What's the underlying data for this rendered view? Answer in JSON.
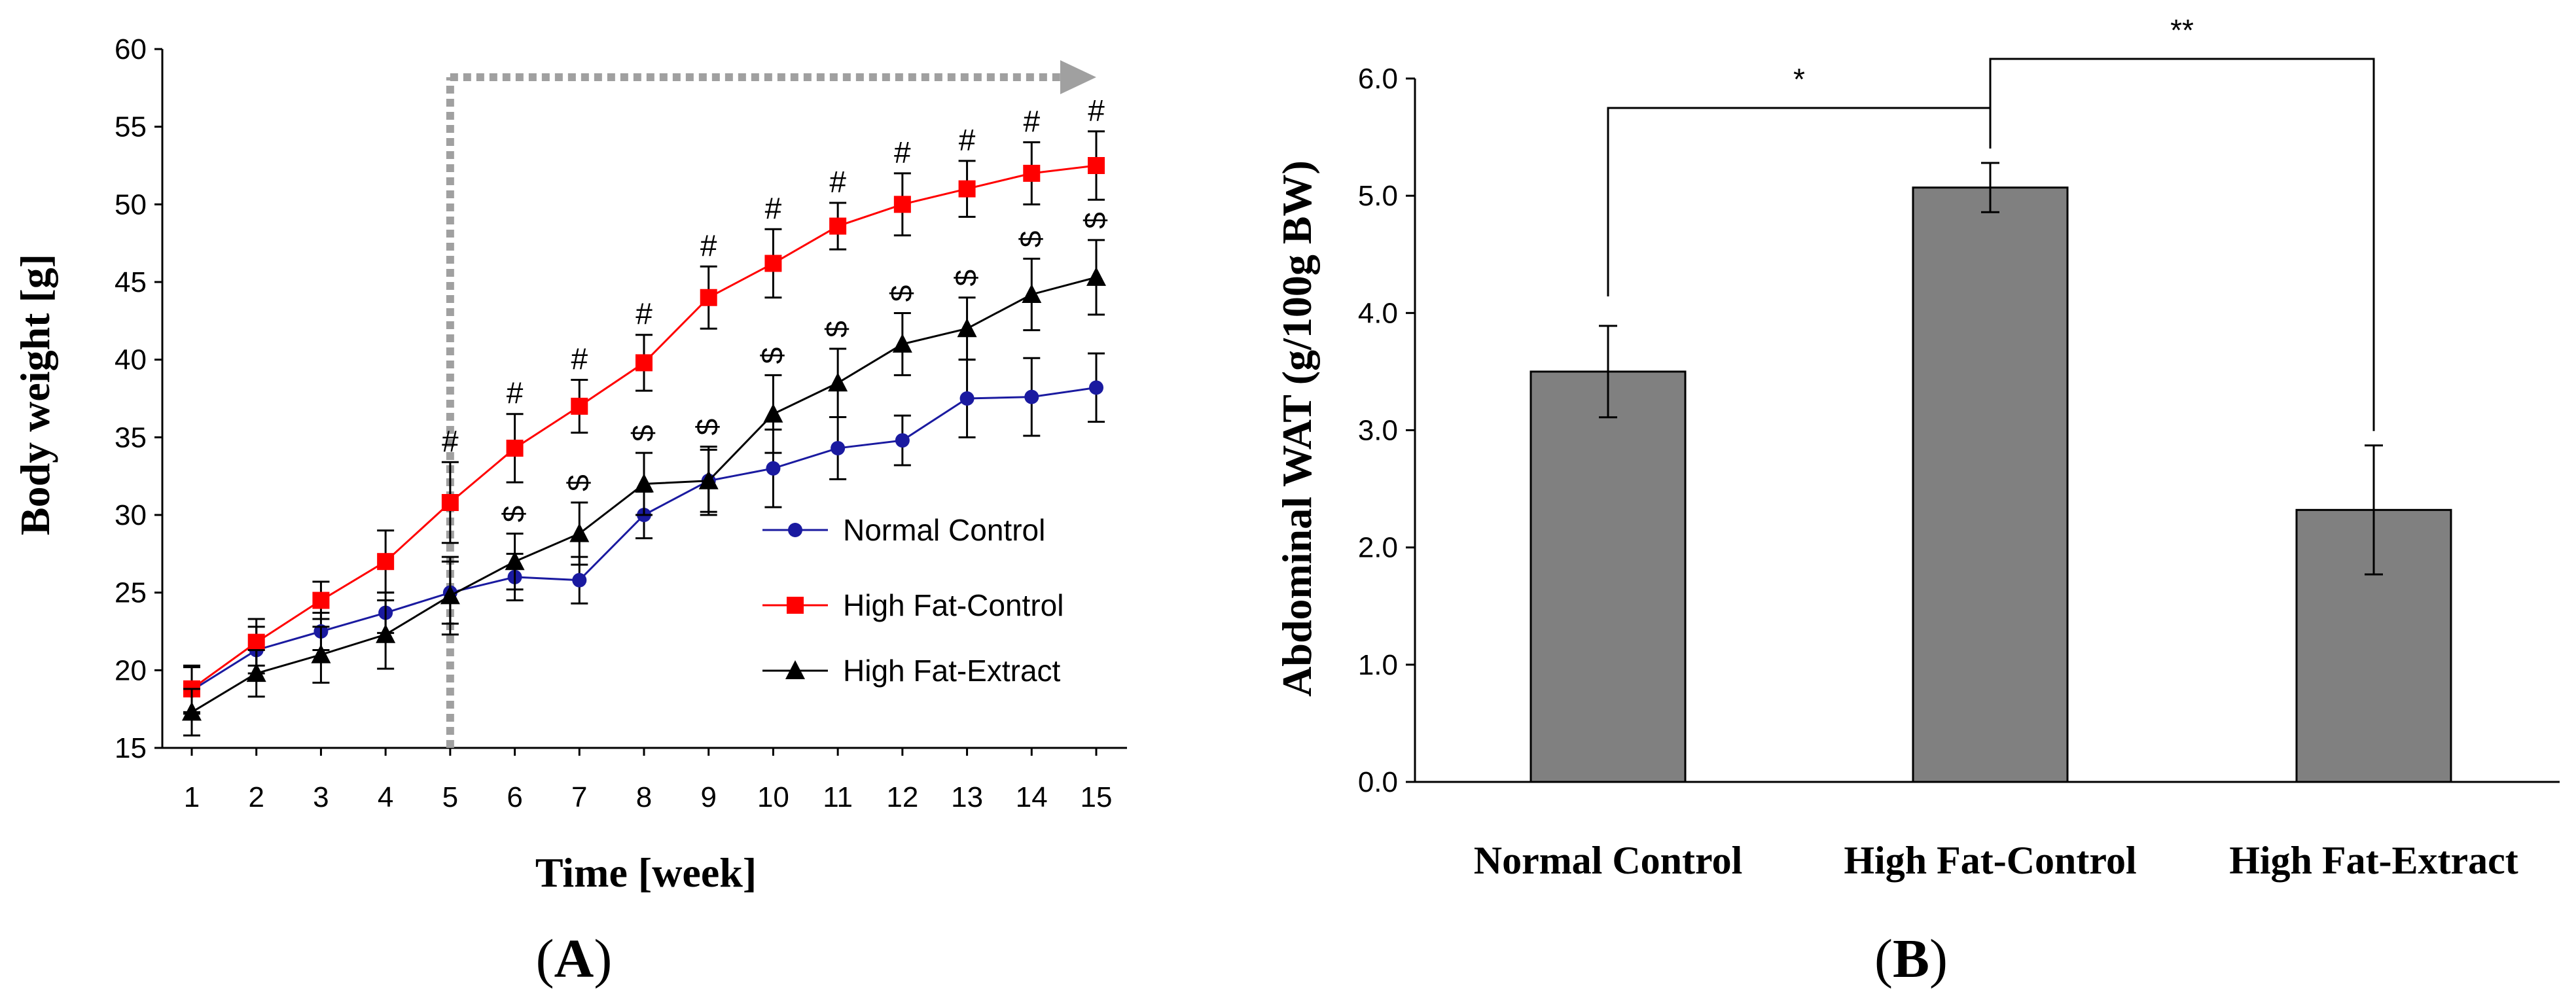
{
  "chart_data": [
    {
      "type": "line",
      "panel_label": "A",
      "xlabel": "Time [week]",
      "ylabel": "Body weight [g]",
      "x": [
        1,
        2,
        3,
        4,
        5,
        6,
        7,
        8,
        9,
        10,
        11,
        12,
        13,
        14,
        15
      ],
      "x_ticks": [
        "1",
        "2",
        "3",
        "4",
        "5",
        "6",
        "7",
        "8",
        "9",
        "10",
        "11",
        "12",
        "13",
        "14",
        "15"
      ],
      "ylim": [
        15,
        60
      ],
      "y_ticks": [
        "15",
        "20",
        "25",
        "30",
        "35",
        "40",
        "45",
        "50",
        "55",
        "60"
      ],
      "series": [
        {
          "name": "Normal Control",
          "color": "#1a1aa0",
          "marker": "circle",
          "values": [
            18.7,
            21.3,
            22.5,
            23.7,
            25.0,
            26.0,
            25.8,
            30.0,
            32.2,
            33.0,
            34.3,
            34.8,
            37.5,
            37.6,
            38.2
          ],
          "errors": [
            1.5,
            1.5,
            1.2,
            1.3,
            2.0,
            1.5,
            1.5,
            1.5,
            2.0,
            2.5,
            2.0,
            1.6,
            2.5,
            2.5,
            2.2
          ]
        },
        {
          "name": "High Fat-Control",
          "color": "#ff0000",
          "marker": "square",
          "values": [
            18.8,
            21.8,
            24.5,
            27.0,
            30.8,
            34.3,
            37.0,
            39.8,
            44.0,
            46.2,
            48.6,
            50.0,
            51.0,
            52.0,
            52.5
          ],
          "errors": [
            1.5,
            1.5,
            1.2,
            2.0,
            2.6,
            2.2,
            1.7,
            1.8,
            2.0,
            2.2,
            1.5,
            2.0,
            1.8,
            2.0,
            2.2
          ],
          "annotations": [
            "",
            "",
            "",
            "",
            "#",
            "#",
            "#",
            "#",
            "#",
            "#",
            "#",
            "#",
            "#",
            "#",
            "#"
          ]
        },
        {
          "name": "High Fat-Extract",
          "color": "#000000",
          "marker": "triangle",
          "values": [
            17.3,
            19.8,
            21.0,
            22.3,
            24.8,
            27.0,
            28.8,
            32.0,
            32.2,
            36.5,
            38.5,
            41.0,
            42.0,
            44.2,
            45.3
          ],
          "errors": [
            1.5,
            1.5,
            1.8,
            2.2,
            2.5,
            1.8,
            2.0,
            2.0,
            2.2,
            2.5,
            2.2,
            2.0,
            2.0,
            2.3,
            2.4
          ],
          "annotations": [
            "",
            "",
            "",
            "",
            "",
            "$",
            "$",
            "$",
            "$",
            "$",
            "$",
            "$",
            "$",
            "$",
            "$"
          ]
        }
      ],
      "marker_line_x": 5,
      "legend_position": "center-right"
    },
    {
      "type": "bar",
      "panel_label": "B",
      "ylabel": "Abdominal WAT (g/100g BW)",
      "xlabel": "",
      "categories": [
        "Normal Control",
        "High Fat-Control",
        "High Fat-Extract"
      ],
      "values": [
        3.5,
        5.07,
        2.32
      ],
      "errors": [
        0.39,
        0.21,
        0.55
      ],
      "ylim": [
        0,
        6
      ],
      "y_ticks": [
        "0.0",
        "1.0",
        "2.0",
        "3.0",
        "4.0",
        "5.0",
        "6.0"
      ],
      "bar_color": "#808080",
      "significance": [
        {
          "between": [
            "Normal Control",
            "High Fat-Control"
          ],
          "label": "*"
        },
        {
          "between": [
            "High Fat-Control",
            "High Fat-Extract"
          ],
          "label": "**"
        }
      ]
    }
  ],
  "colors": {
    "accent_dashed": "#a0a0a0"
  }
}
